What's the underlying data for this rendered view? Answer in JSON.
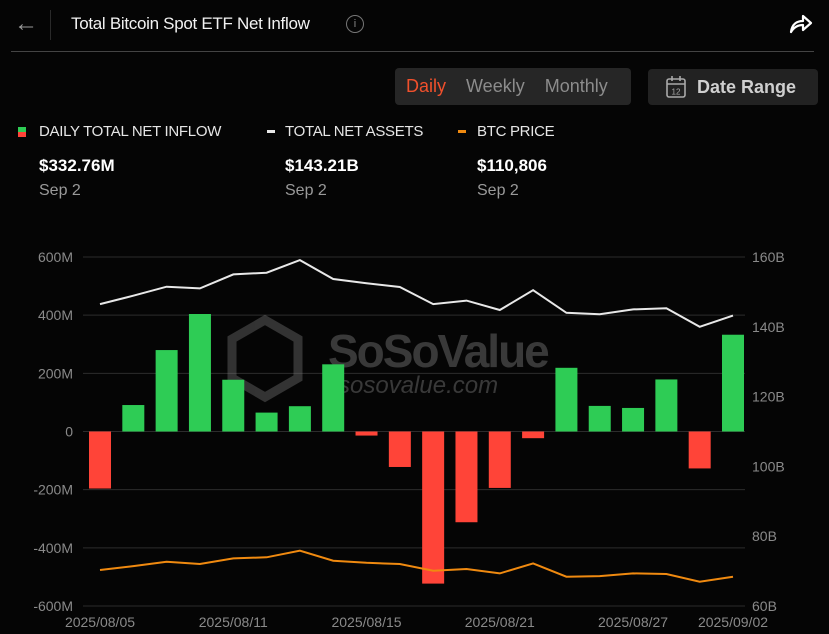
{
  "header": {
    "title": "Total Bitcoin Spot ETF Net Inflow",
    "info_icon": "info-icon",
    "back_icon": "arrow-left-icon",
    "share_icon": "share-icon"
  },
  "controls": {
    "periods": [
      "Daily",
      "Weekly",
      "Monthly"
    ],
    "active_period": "Daily",
    "date_range_label": "Date Range",
    "date_range_icon": "calendar-icon",
    "calendar_icon_text": "12"
  },
  "legend": [
    {
      "label": "DAILY TOTAL NET INFLOW",
      "value": "$332.76M",
      "date": "Sep 2"
    },
    {
      "label": "TOTAL NET ASSETS",
      "value": "$143.21B",
      "date": "Sep 2"
    },
    {
      "label": "BTC PRICE",
      "value": "$110,806",
      "date": "Sep 2"
    }
  ],
  "watermark": {
    "brand": "SoSoValue",
    "url": "sosovalue.com"
  },
  "colors": {
    "positive": "#2ecc55",
    "negative": "#ff4438",
    "assets_line": "#e8e8e8",
    "price_line": "#f08a10",
    "active_tab": "#f0502c"
  },
  "chart_data": {
    "type": "bar+line",
    "x_tick_labels": [
      {
        "index": 0,
        "label": "2025/08/05"
      },
      {
        "index": 4,
        "label": "2025/08/11"
      },
      {
        "index": 8,
        "label": "2025/08/15"
      },
      {
        "index": 12,
        "label": "2025/08/21"
      },
      {
        "index": 16,
        "label": "2025/08/27"
      },
      {
        "index": 19,
        "label": "2025/09/02"
      }
    ],
    "left_axis": {
      "ticks": [
        "600M",
        "400M",
        "200M",
        "0",
        "-200M",
        "-400M",
        "-600M"
      ],
      "ylim": [
        -600,
        600
      ],
      "unit": "M USD"
    },
    "right_axis": {
      "ticks": [
        "160B",
        "140B",
        "120B",
        "100B",
        "80B",
        "60B"
      ],
      "ylim": [
        60,
        160
      ],
      "unit": "B USD"
    },
    "grid": true,
    "series": [
      {
        "name": "DAILY TOTAL NET INFLOW",
        "type": "bar",
        "axis": "left",
        "values": [
          -196,
          91,
          280,
          404,
          178,
          65,
          87,
          231,
          -14,
          -122,
          -523,
          -312,
          -194,
          -23,
          219,
          88,
          81,
          179,
          -127,
          332.76
        ]
      },
      {
        "name": "TOTAL NET ASSETS",
        "type": "line",
        "axis": "right",
        "values": [
          146.5,
          148.9,
          151.5,
          151.0,
          155.0,
          155.5,
          159.1,
          153.7,
          152.5,
          151.4,
          146.5,
          147.5,
          144.8,
          150.5,
          144.0,
          143.6,
          145.0,
          145.3,
          140.0,
          143.21
        ]
      },
      {
        "name": "BTC PRICE",
        "type": "line",
        "axis": "hidden",
        "values": [
          114000,
          115900,
          118000,
          116900,
          119600,
          120100,
          123300,
          118500,
          117500,
          116900,
          113700,
          114500,
          112400,
          117200,
          110800,
          111100,
          112400,
          112100,
          108400,
          110806
        ]
      }
    ]
  }
}
